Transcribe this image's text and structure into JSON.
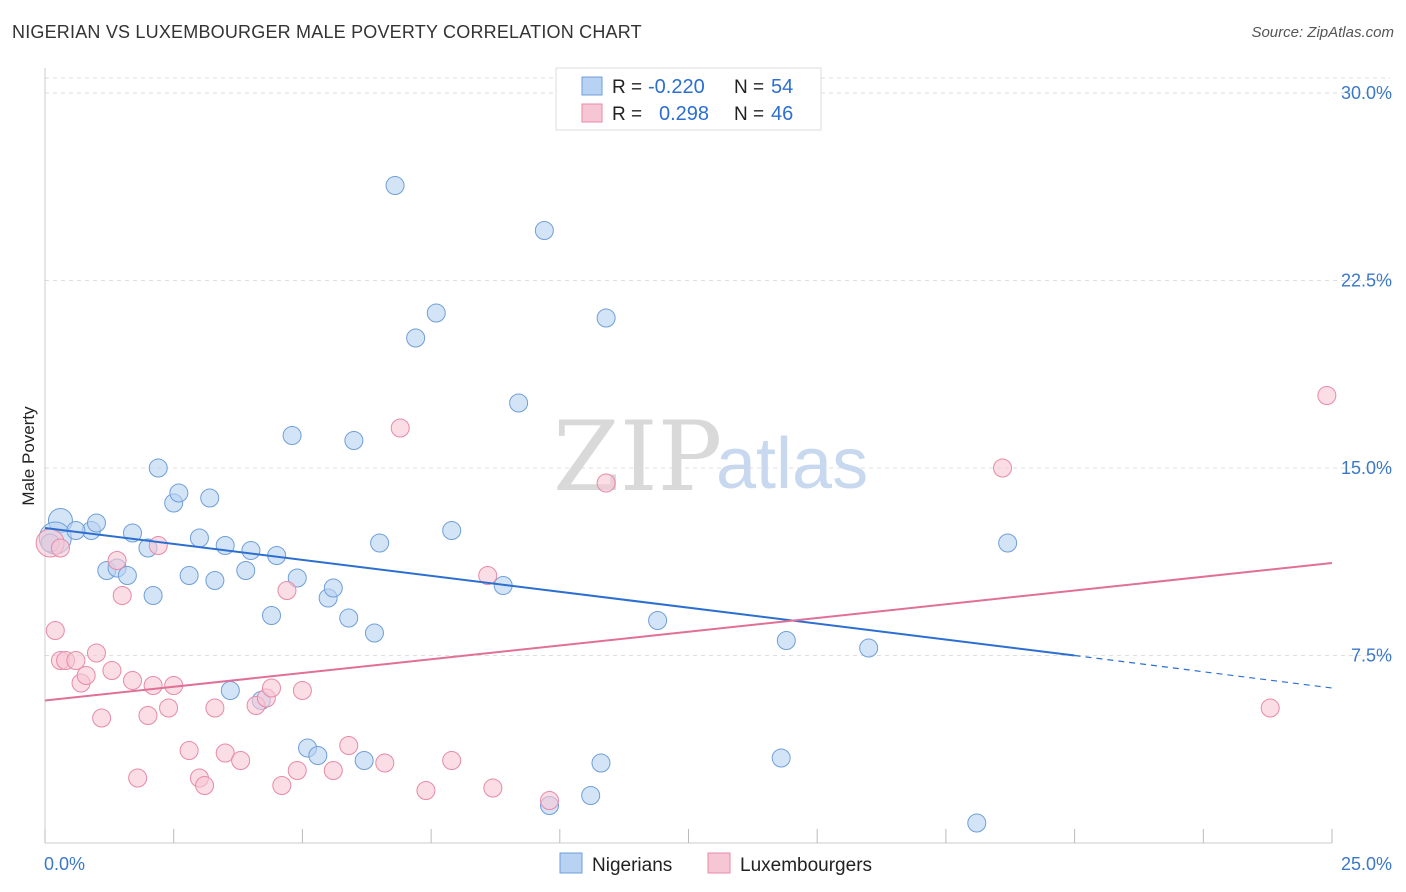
{
  "header": {
    "title": "NIGERIAN VS LUXEMBOURGER MALE POVERTY CORRELATION CHART",
    "source": "Source: ZipAtlas.com"
  },
  "watermark": {
    "zip": "ZIP",
    "atlas": "atlas"
  },
  "legend": {
    "rows": [
      {
        "r_label": "R =",
        "r_value": "-0.220",
        "n_label": "N =",
        "n_value": "54"
      },
      {
        "r_label": "R =",
        "r_value": "0.298",
        "n_label": "N =",
        "n_value": "46"
      }
    ]
  },
  "bottom_legend": {
    "items": [
      {
        "label": "Nigerians"
      },
      {
        "label": "Luxembourgers"
      }
    ]
  },
  "colors": {
    "nigerians_fill": "#b7d2f2",
    "nigerians_stroke": "#6f9fd8",
    "nigerians_line": "#2c6fd1",
    "luxembourgers_fill": "#f7c6d4",
    "luxembourgers_stroke": "#e88aa8",
    "luxembourgers_line": "#e07098",
    "grid": "#dddddd",
    "tick_label": "#3a78c9"
  },
  "chart_data": {
    "type": "scatter",
    "title": "NIGERIAN VS LUXEMBOURGER MALE POVERTY CORRELATION CHART",
    "xlabel": "",
    "ylabel": "Male Poverty",
    "xlim": [
      0,
      25
    ],
    "ylim": [
      0,
      31
    ],
    "x_tick_labels": [
      "0.0%",
      "25.0%"
    ],
    "y_ticks": [
      7.5,
      15.0,
      22.5,
      30.0
    ],
    "y_tick_labels": [
      "7.5%",
      "15.0%",
      "22.5%",
      "30.0%"
    ],
    "grid": true,
    "legend_position": "top-center",
    "series": [
      {
        "name": "Nigerians",
        "r": -0.22,
        "n": 54,
        "trend": {
          "x0": 0.0,
          "y0": 12.6,
          "x1": 20.0,
          "y1": 7.5,
          "dashed_to_x": 25.0,
          "dashed_to_y": 6.2
        },
        "points": [
          {
            "x": 0.3,
            "y": 12.9,
            "s": 12
          },
          {
            "x": 0.2,
            "y": 12.2,
            "s": 16
          },
          {
            "x": 0.9,
            "y": 12.5,
            "s": 9
          },
          {
            "x": 1.0,
            "y": 12.8,
            "s": 9
          },
          {
            "x": 0.6,
            "y": 12.5,
            "s": 9
          },
          {
            "x": 1.2,
            "y": 10.9,
            "s": 9
          },
          {
            "x": 1.4,
            "y": 11.0,
            "s": 9
          },
          {
            "x": 1.6,
            "y": 10.7,
            "s": 9
          },
          {
            "x": 1.7,
            "y": 12.4,
            "s": 9
          },
          {
            "x": 2.0,
            "y": 11.8,
            "s": 9
          },
          {
            "x": 2.1,
            "y": 9.9,
            "s": 9
          },
          {
            "x": 2.2,
            "y": 15.0,
            "s": 9
          },
          {
            "x": 2.5,
            "y": 13.6,
            "s": 9
          },
          {
            "x": 2.6,
            "y": 14.0,
            "s": 9
          },
          {
            "x": 2.8,
            "y": 10.7,
            "s": 9
          },
          {
            "x": 3.0,
            "y": 12.2,
            "s": 9
          },
          {
            "x": 3.2,
            "y": 13.8,
            "s": 9
          },
          {
            "x": 3.3,
            "y": 10.5,
            "s": 9
          },
          {
            "x": 3.5,
            "y": 11.9,
            "s": 9
          },
          {
            "x": 3.6,
            "y": 6.1,
            "s": 9
          },
          {
            "x": 3.9,
            "y": 10.9,
            "s": 9
          },
          {
            "x": 4.0,
            "y": 11.7,
            "s": 9
          },
          {
            "x": 4.2,
            "y": 5.7,
            "s": 9
          },
          {
            "x": 4.4,
            "y": 9.1,
            "s": 9
          },
          {
            "x": 4.5,
            "y": 11.5,
            "s": 9
          },
          {
            "x": 4.8,
            "y": 16.3,
            "s": 9
          },
          {
            "x": 4.9,
            "y": 10.6,
            "s": 9
          },
          {
            "x": 5.1,
            "y": 3.8,
            "s": 9
          },
          {
            "x": 5.3,
            "y": 3.5,
            "s": 9
          },
          {
            "x": 5.5,
            "y": 9.8,
            "s": 9
          },
          {
            "x": 5.6,
            "y": 10.2,
            "s": 9
          },
          {
            "x": 5.9,
            "y": 9.0,
            "s": 9
          },
          {
            "x": 6.0,
            "y": 16.1,
            "s": 9
          },
          {
            "x": 6.2,
            "y": 3.3,
            "s": 9
          },
          {
            "x": 6.4,
            "y": 8.4,
            "s": 9
          },
          {
            "x": 6.5,
            "y": 12.0,
            "s": 9
          },
          {
            "x": 6.8,
            "y": 26.3,
            "s": 9
          },
          {
            "x": 7.2,
            "y": 20.2,
            "s": 9
          },
          {
            "x": 7.6,
            "y": 21.2,
            "s": 9
          },
          {
            "x": 7.9,
            "y": 12.5,
            "s": 9
          },
          {
            "x": 8.9,
            "y": 10.3,
            "s": 9
          },
          {
            "x": 9.2,
            "y": 17.6,
            "s": 9
          },
          {
            "x": 9.8,
            "y": 1.5,
            "s": 9
          },
          {
            "x": 10.6,
            "y": 1.9,
            "s": 9
          },
          {
            "x": 10.8,
            "y": 3.2,
            "s": 9
          },
          {
            "x": 9.7,
            "y": 24.5,
            "s": 9
          },
          {
            "x": 10.9,
            "y": 21.0,
            "s": 9
          },
          {
            "x": 11.9,
            "y": 8.9,
            "s": 9
          },
          {
            "x": 14.4,
            "y": 8.1,
            "s": 9
          },
          {
            "x": 14.3,
            "y": 3.4,
            "s": 9
          },
          {
            "x": 16.0,
            "y": 7.8,
            "s": 9
          },
          {
            "x": 18.7,
            "y": 12.0,
            "s": 9
          },
          {
            "x": 18.1,
            "y": 0.8,
            "s": 9
          },
          {
            "x": 0.1,
            "y": 12.0,
            "s": 9
          }
        ]
      },
      {
        "name": "Luxembourgers",
        "r": 0.298,
        "n": 46,
        "trend": {
          "x0": 0.0,
          "y0": 5.7,
          "x1": 25.0,
          "y1": 11.2
        },
        "points": [
          {
            "x": 0.1,
            "y": 12.0,
            "s": 14
          },
          {
            "x": 0.2,
            "y": 8.5,
            "s": 9
          },
          {
            "x": 0.3,
            "y": 7.3,
            "s": 9
          },
          {
            "x": 0.4,
            "y": 7.3,
            "s": 9
          },
          {
            "x": 0.6,
            "y": 7.3,
            "s": 9
          },
          {
            "x": 0.7,
            "y": 6.4,
            "s": 9
          },
          {
            "x": 0.8,
            "y": 6.7,
            "s": 9
          },
          {
            "x": 1.0,
            "y": 7.6,
            "s": 9
          },
          {
            "x": 1.1,
            "y": 5.0,
            "s": 9
          },
          {
            "x": 1.3,
            "y": 6.9,
            "s": 9
          },
          {
            "x": 1.4,
            "y": 11.3,
            "s": 9
          },
          {
            "x": 1.5,
            "y": 9.9,
            "s": 9
          },
          {
            "x": 1.7,
            "y": 6.5,
            "s": 9
          },
          {
            "x": 1.8,
            "y": 2.6,
            "s": 9
          },
          {
            "x": 2.0,
            "y": 5.1,
            "s": 9
          },
          {
            "x": 2.1,
            "y": 6.3,
            "s": 9
          },
          {
            "x": 2.2,
            "y": 11.9,
            "s": 9
          },
          {
            "x": 2.4,
            "y": 5.4,
            "s": 9
          },
          {
            "x": 2.5,
            "y": 6.3,
            "s": 9
          },
          {
            "x": 2.8,
            "y": 3.7,
            "s": 9
          },
          {
            "x": 3.0,
            "y": 2.6,
            "s": 9
          },
          {
            "x": 3.1,
            "y": 2.3,
            "s": 9
          },
          {
            "x": 3.3,
            "y": 5.4,
            "s": 9
          },
          {
            "x": 3.5,
            "y": 3.6,
            "s": 9
          },
          {
            "x": 3.8,
            "y": 3.3,
            "s": 9
          },
          {
            "x": 4.1,
            "y": 5.5,
            "s": 9
          },
          {
            "x": 4.3,
            "y": 5.8,
            "s": 9
          },
          {
            "x": 4.4,
            "y": 6.2,
            "s": 9
          },
          {
            "x": 4.6,
            "y": 2.3,
            "s": 9
          },
          {
            "x": 4.7,
            "y": 10.1,
            "s": 9
          },
          {
            "x": 4.9,
            "y": 2.9,
            "s": 9
          },
          {
            "x": 5.0,
            "y": 6.1,
            "s": 9
          },
          {
            "x": 5.6,
            "y": 2.9,
            "s": 9
          },
          {
            "x": 5.9,
            "y": 3.9,
            "s": 9
          },
          {
            "x": 6.6,
            "y": 3.2,
            "s": 9
          },
          {
            "x": 6.9,
            "y": 16.6,
            "s": 9
          },
          {
            "x": 7.4,
            "y": 2.1,
            "s": 9
          },
          {
            "x": 7.9,
            "y": 3.3,
            "s": 9
          },
          {
            "x": 8.6,
            "y": 10.7,
            "s": 9
          },
          {
            "x": 8.7,
            "y": 2.2,
            "s": 9
          },
          {
            "x": 9.8,
            "y": 1.7,
            "s": 9
          },
          {
            "x": 10.9,
            "y": 14.4,
            "s": 9
          },
          {
            "x": 18.6,
            "y": 15.0,
            "s": 9
          },
          {
            "x": 23.8,
            "y": 5.4,
            "s": 9
          },
          {
            "x": 24.9,
            "y": 17.9,
            "s": 9
          },
          {
            "x": 0.3,
            "y": 11.8,
            "s": 9
          }
        ]
      }
    ]
  }
}
